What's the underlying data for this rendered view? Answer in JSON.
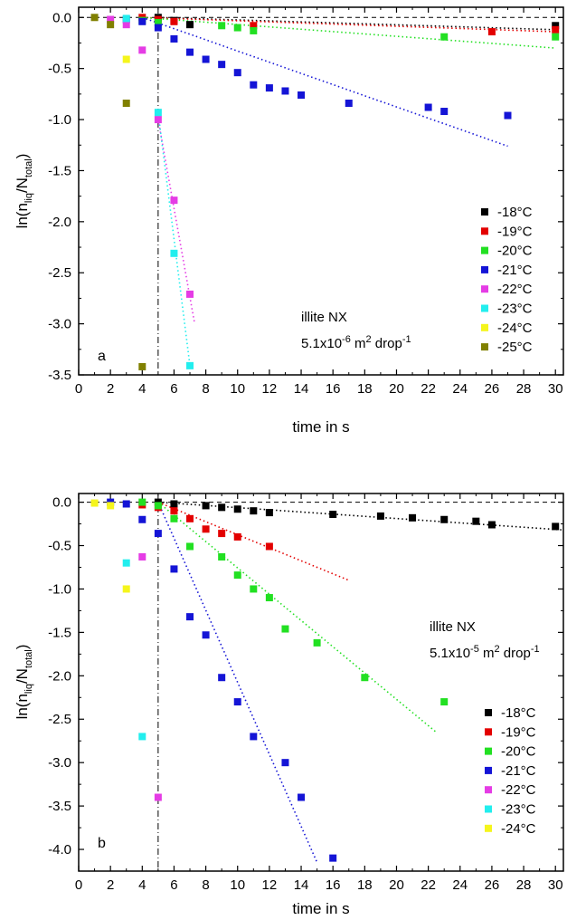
{
  "colors": {
    "-18°C": "#000000",
    "-19°C": "#e30000",
    "-20°C": "#22e022",
    "-21°C": "#1414d6",
    "-22°C": "#e53ce5",
    "-23°C": "#22eeee",
    "-24°C": "#f5f51c",
    "-25°C": "#808000"
  },
  "chart_data": [
    {
      "type": "scatter",
      "panel_label": "a",
      "xlabel": "time in s",
      "ylabel": "ln(n_liq/N_total)",
      "xlim": [
        0,
        30.5
      ],
      "ylim": [
        -3.5,
        0.1
      ],
      "x_ticks": [
        "0",
        "2",
        "4",
        "6",
        "8",
        "10",
        "12",
        "14",
        "16",
        "18",
        "20",
        "22",
        "24",
        "26",
        "28",
        "30"
      ],
      "y_ticks": [
        "0.0",
        "-0.5",
        "-1.0",
        "-1.5",
        "-2.0",
        "-2.5",
        "-3.0",
        "-3.5"
      ],
      "annotation_lines": [
        "illite NX",
        "5.1x10^-6 m² drop^-1"
      ],
      "vertical_line_x": 5,
      "legend_position": "bottom-right",
      "series": [
        {
          "name": "-18°C",
          "points": [
            [
              5,
              0
            ],
            [
              6,
              -0.03
            ],
            [
              7,
              -0.07
            ],
            [
              30,
              -0.08
            ]
          ],
          "fit": [
            [
              5,
              0
            ],
            [
              30,
              -0.12
            ]
          ]
        },
        {
          "name": "-19°C",
          "points": [
            [
              4,
              0
            ],
            [
              5,
              -0.02
            ],
            [
              6,
              -0.04
            ],
            [
              11,
              -0.08
            ],
            [
              26,
              -0.14
            ],
            [
              30,
              -0.12
            ]
          ],
          "fit": [
            [
              4,
              0
            ],
            [
              30,
              -0.14
            ]
          ]
        },
        {
          "name": "-20°C",
          "points": [
            [
              4,
              -0.03
            ],
            [
              5,
              -0.05
            ],
            [
              9,
              -0.08
            ],
            [
              10,
              -0.1
            ],
            [
              11,
              -0.13
            ],
            [
              23,
              -0.19
            ],
            [
              30,
              -0.19
            ]
          ],
          "fit": [
            [
              4,
              0
            ],
            [
              30,
              -0.3
            ]
          ]
        },
        {
          "name": "-21°C",
          "points": [
            [
              3,
              -0.02
            ],
            [
              4,
              -0.04
            ],
            [
              5,
              -0.1
            ],
            [
              6,
              -0.21
            ],
            [
              7,
              -0.34
            ],
            [
              8,
              -0.41
            ],
            [
              9,
              -0.46
            ],
            [
              10,
              -0.54
            ],
            [
              11,
              -0.66
            ],
            [
              12,
              -0.69
            ],
            [
              13,
              -0.72
            ],
            [
              14,
              -0.76
            ],
            [
              17,
              -0.84
            ],
            [
              22,
              -0.88
            ],
            [
              23,
              -0.92
            ],
            [
              27,
              -0.96
            ]
          ],
          "fit": [
            [
              4,
              0
            ],
            [
              27,
              -1.26
            ]
          ]
        },
        {
          "name": "-22°C",
          "points": [
            [
              2,
              -0.02
            ],
            [
              3,
              -0.07
            ],
            [
              4,
              -0.32
            ],
            [
              5,
              -1.0
            ],
            [
              6,
              -1.79
            ],
            [
              7,
              -2.71
            ]
          ],
          "fit": [
            [
              5,
              -1.0
            ],
            [
              7.3,
              -3.0
            ]
          ]
        },
        {
          "name": "-23°C",
          "points": [
            [
              3,
              -0.01
            ],
            [
              5,
              -0.93
            ],
            [
              6,
              -2.31
            ],
            [
              7,
              -3.41
            ]
          ],
          "fit": [
            [
              5,
              -0.93
            ],
            [
              7,
              -3.41
            ]
          ]
        },
        {
          "name": "-24°C",
          "points": [
            [
              3,
              -0.41
            ]
          ],
          "fit": []
        },
        {
          "name": "-25°C",
          "points": [
            [
              1,
              0
            ],
            [
              2,
              -0.07
            ],
            [
              3,
              -0.84
            ],
            [
              4,
              -3.42
            ]
          ],
          "fit": []
        }
      ]
    },
    {
      "type": "scatter",
      "panel_label": "b",
      "xlabel": "time in s",
      "ylabel": "ln(n_liq/N_total)",
      "xlim": [
        0,
        30.5
      ],
      "ylim": [
        -4.25,
        0.1
      ],
      "x_ticks": [
        "0",
        "2",
        "4",
        "6",
        "8",
        "10",
        "12",
        "14",
        "16",
        "18",
        "20",
        "22",
        "24",
        "26",
        "28",
        "30"
      ],
      "y_ticks": [
        "0.0",
        "-0.5",
        "-1.0",
        "-1.5",
        "-2.0",
        "-2.5",
        "-3.0",
        "-3.5",
        "-4.0"
      ],
      "annotation_lines": [
        "illite NX",
        "5.1x10^-5 m² drop^-1"
      ],
      "vertical_line_x": 5,
      "legend_position": "bottom-right",
      "series": [
        {
          "name": "-18°C",
          "points": [
            [
              5,
              0
            ],
            [
              6,
              -0.02
            ],
            [
              8,
              -0.04
            ],
            [
              9,
              -0.06
            ],
            [
              10,
              -0.08
            ],
            [
              11,
              -0.1
            ],
            [
              12,
              -0.12
            ],
            [
              16,
              -0.14
            ],
            [
              19,
              -0.16
            ],
            [
              21,
              -0.18
            ],
            [
              23,
              -0.2
            ],
            [
              25,
              -0.22
            ],
            [
              26,
              -0.26
            ],
            [
              30,
              -0.28
            ]
          ],
          "fit": [
            [
              5,
              0
            ],
            [
              30.5,
              -0.32
            ]
          ]
        },
        {
          "name": "-19°C",
          "points": [
            [
              4,
              -0.03
            ],
            [
              5,
              -0.06
            ],
            [
              6,
              -0.1
            ],
            [
              7,
              -0.19
            ],
            [
              8,
              -0.31
            ],
            [
              9,
              -0.36
            ],
            [
              10,
              -0.4
            ],
            [
              12,
              -0.51
            ]
          ],
          "fit": [
            [
              5,
              0
            ],
            [
              17,
              -0.9
            ]
          ]
        },
        {
          "name": "-20°C",
          "points": [
            [
              4,
              0
            ],
            [
              5,
              -0.04
            ],
            [
              6,
              -0.19
            ],
            [
              7,
              -0.51
            ],
            [
              9,
              -0.63
            ],
            [
              10,
              -0.84
            ],
            [
              11,
              -1.0
            ],
            [
              12,
              -1.1
            ],
            [
              13,
              -1.46
            ],
            [
              15,
              -1.62
            ],
            [
              18,
              -2.02
            ],
            [
              23,
              -2.3
            ]
          ],
          "fit": [
            [
              5,
              0
            ],
            [
              22.5,
              -2.65
            ]
          ]
        },
        {
          "name": "-21°C",
          "points": [
            [
              2,
              0
            ],
            [
              3,
              -0.02
            ],
            [
              4,
              -0.2
            ],
            [
              5,
              -0.36
            ],
            [
              6,
              -0.77
            ],
            [
              7,
              -1.32
            ],
            [
              8,
              -1.53
            ],
            [
              9,
              -2.02
            ],
            [
              10,
              -2.3
            ],
            [
              11,
              -2.7
            ],
            [
              13,
              -3.0
            ],
            [
              14,
              -3.4
            ],
            [
              16,
              -4.1
            ]
          ],
          "fit": [
            [
              5,
              0
            ],
            [
              15,
              -4.15
            ]
          ]
        },
        {
          "name": "-22°C",
          "points": [
            [
              4,
              -0.63
            ],
            [
              5,
              -3.4
            ]
          ],
          "fit": []
        },
        {
          "name": "-23°C",
          "points": [
            [
              3,
              -0.7
            ],
            [
              4,
              -2.7
            ]
          ],
          "fit": []
        },
        {
          "name": "-24°C",
          "points": [
            [
              1,
              -0.01
            ],
            [
              2,
              -0.04
            ],
            [
              3,
              -1.0
            ]
          ],
          "fit": []
        }
      ]
    }
  ]
}
